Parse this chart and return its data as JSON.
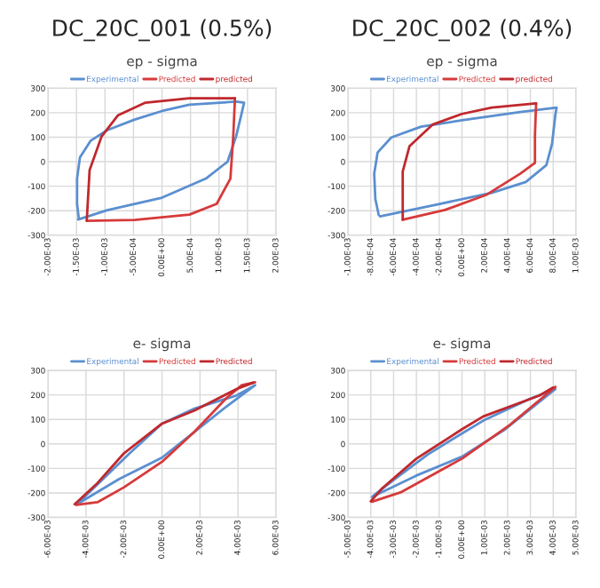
{
  "chart_data": [
    {
      "type": "line",
      "title": "DC_20C_001 (0.5%)",
      "subtitle": "ep - sigma",
      "legend": "top",
      "grid": true,
      "xlim": [
        -0.002,
        0.002
      ],
      "ylim": [
        -300,
        300
      ],
      "xticks": [
        {
          "value": -0.002,
          "label": "-2.00E-03"
        },
        {
          "value": -0.0015,
          "label": "-1.50E-03"
        },
        {
          "value": -0.001,
          "label": "-1.00E-03"
        },
        {
          "value": -0.0005,
          "label": "-5.00E-04"
        },
        {
          "value": 0,
          "label": "0.00E+00"
        },
        {
          "value": 0.0005,
          "label": "5.00E-04"
        },
        {
          "value": 0.001,
          "label": "1.00E-03"
        },
        {
          "value": 0.0015,
          "label": "1.50E-03"
        },
        {
          "value": 0.002,
          "label": "2.00E-03"
        }
      ],
      "yticks": [
        -300,
        -200,
        -100,
        0,
        100,
        200,
        300
      ],
      "series": [
        {
          "name": "Experimental",
          "color": "#5b8fd0",
          "x": [
            -0.00147,
            -0.00096,
            0,
            0.00077,
            0.00115,
            0.0013,
            0.00139,
            0.00144,
            0.0013,
            0.00048,
            0,
            -0.00048,
            -0.00096,
            -0.00125,
            -0.00144,
            -0.00149,
            -0.00149,
            -0.00146
          ],
          "values": [
            -236,
            -198,
            -147,
            -69,
            0,
            103,
            190,
            241,
            245,
            233,
            207,
            172,
            129,
            86,
            17,
            -69,
            -172,
            -232
          ]
        },
        {
          "name": "Predicted",
          "color": "#d63a3a",
          "x": [
            -0.00132,
            -0.00048,
            0.00048,
            0.00096,
            0.0012,
            0.00125,
            0.00128
          ],
          "values": [
            -241,
            -238,
            -216,
            -172,
            -69,
            103,
            259
          ]
        },
        {
          "name": "predicted",
          "color": "#c0282d",
          "x": [
            0.00128,
            0.00048,
            -0.00029,
            -0.00077,
            -0.00106,
            -0.00127,
            -0.00132
          ],
          "values": [
            259,
            259,
            241,
            190,
            103,
            -34,
            -241
          ]
        }
      ]
    },
    {
      "type": "line",
      "title": "DC_20C_002 (0.4%)",
      "subtitle": "ep - sigma",
      "legend": "top",
      "grid": true,
      "xlim": [
        -0.001,
        0.001
      ],
      "ylim": [
        -300,
        300
      ],
      "xticks": [
        {
          "value": -0.001,
          "label": "-1.00E-03"
        },
        {
          "value": -0.0008,
          "label": "-8.00E-04"
        },
        {
          "value": -0.0006,
          "label": "-6.00E-04"
        },
        {
          "value": -0.0004,
          "label": "-4.00E-04"
        },
        {
          "value": -0.0002,
          "label": "-2.00E-04"
        },
        {
          "value": 0,
          "label": "0.00E+00"
        },
        {
          "value": 0.0002,
          "label": "2.00E-04"
        },
        {
          "value": 0.0004,
          "label": "4.00E-04"
        },
        {
          "value": 0.0006,
          "label": "6.00E-04"
        },
        {
          "value": 0.0008,
          "label": "8.00E-04"
        },
        {
          "value": 0.001,
          "label": "1.00E-03"
        }
      ],
      "yticks": [
        -300,
        -200,
        -100,
        0,
        100,
        200,
        300
      ],
      "series": [
        {
          "name": "Experimental",
          "color": "#5b8fd0",
          "x": [
            -0.00072,
            -0.00026,
            0.00026,
            0.00056,
            0.00074,
            0.00079,
            0.00082,
            0.00083,
            0.00051,
            0,
            -0.00036,
            -0.00062,
            -0.00074,
            -0.00077,
            -0.00076,
            -0.00073
          ],
          "values": [
            -223,
            -179,
            -127,
            -83,
            -14,
            73,
            195,
            221,
            203,
            169,
            143,
            99,
            38,
            -49,
            -153,
            -218
          ]
        },
        {
          "name": "Predicted",
          "color": "#d63a3a",
          "x": [
            -0.00052,
            -0.00015,
            0.00021,
            0.00051,
            0.00064,
            0.00064,
            0.00065
          ],
          "values": [
            -237,
            -197,
            -136,
            -49,
            -5,
            108,
            238
          ]
        },
        {
          "name": "predicted",
          "color": "#c0282d",
          "x": [
            0.00065,
            0.00026,
            0,
            -0.00026,
            -0.00046,
            -0.00052,
            -0.00052
          ],
          "values": [
            238,
            221,
            195,
            151,
            64,
            -40,
            -237
          ]
        }
      ]
    },
    {
      "type": "line",
      "title": "e- sigma",
      "legend": "top",
      "grid": true,
      "xlim": [
        -0.006,
        0.006
      ],
      "ylim": [
        -300,
        300
      ],
      "xticks": [
        {
          "value": -0.006,
          "label": "-6.00E-03"
        },
        {
          "value": -0.004,
          "label": "-4.00E-03"
        },
        {
          "value": -0.002,
          "label": "-2.00E-03"
        },
        {
          "value": 0,
          "label": "0.00E+00"
        },
        {
          "value": 0.002,
          "label": "2.00E-03"
        },
        {
          "value": 0.004,
          "label": "4.00E-03"
        },
        {
          "value": 0.006,
          "label": "6.00E-03"
        }
      ],
      "yticks": [
        -300,
        -200,
        -100,
        0,
        100,
        200,
        300
      ],
      "series": [
        {
          "name": "Experimental",
          "color": "#5b8fd0",
          "x": [
            -0.0045,
            -0.00225,
            0,
            0.0017,
            0.0034,
            0.0049,
            0.0039,
            0.0017,
            0,
            -0.0017,
            -0.0031,
            -0.0044
          ],
          "values": [
            -247,
            -143,
            -56,
            49,
            153,
            240,
            197,
            144,
            83,
            -38,
            -143,
            -240
          ]
        },
        {
          "name": "Predicted",
          "color": "#d63a3a",
          "x": [
            -0.0045,
            -0.0034,
            -0.002,
            0,
            0.0017,
            0.0034,
            0.0042,
            0.0049
          ],
          "values": [
            -249,
            -238,
            -177,
            -73,
            49,
            188,
            240,
            252
          ]
        },
        {
          "name": "Predicted",
          "color": "#c0282d",
          "x": [
            0.0048,
            0.0039,
            0.0017,
            0,
            -0.002,
            -0.0034,
            -0.0046
          ],
          "values": [
            250,
            223,
            136,
            83,
            -38,
            -160,
            -246
          ]
        }
      ]
    },
    {
      "type": "line",
      "title": "e- sigma",
      "legend": "top",
      "grid": true,
      "xlim": [
        -0.005,
        0.005
      ],
      "ylim": [
        -300,
        300
      ],
      "xticks": [
        {
          "value": -0.005,
          "label": "-5.00E-03"
        },
        {
          "value": -0.004,
          "label": "-4.00E-03"
        },
        {
          "value": -0.003,
          "label": "-3.00E-03"
        },
        {
          "value": -0.002,
          "label": "-2.00E-03"
        },
        {
          "value": -0.001,
          "label": "-1.00E-03"
        },
        {
          "value": 0,
          "label": "0.00E+00"
        },
        {
          "value": 0.001,
          "label": "1.00E-03"
        },
        {
          "value": 0.002,
          "label": "2.00E-03"
        },
        {
          "value": 0.003,
          "label": "3.00E-03"
        },
        {
          "value": 0.004,
          "label": "4.00E-03"
        },
        {
          "value": 0.005,
          "label": "5.00E-03"
        }
      ],
      "yticks": [
        -300,
        -200,
        -100,
        0,
        100,
        200,
        300
      ],
      "series": [
        {
          "name": "Experimental",
          "color": "#5b8fd0",
          "x": [
            -0.00395,
            -0.002,
            0,
            0.0019,
            0.0041,
            0.0029,
            0.00093,
            0,
            -0.0015,
            -0.003,
            -0.0039
          ],
          "values": [
            -216,
            -129,
            -52,
            60,
            224,
            181,
            95,
            43,
            -43,
            -147,
            -212
          ]
        },
        {
          "name": "Predicted",
          "color": "#d63a3a",
          "x": [
            -0.00395,
            -0.0027,
            0,
            0.0021,
            0.0041
          ],
          "values": [
            -236,
            -198,
            -60,
            78,
            233
          ]
        },
        {
          "name": "Predicted",
          "color": "#c0282d",
          "x": [
            0.004,
            0.0034,
            0.00093,
            0,
            -0.002,
            -0.0035,
            -0.004
          ],
          "values": [
            231,
            198,
            112,
            60,
            -60,
            -181,
            -234
          ]
        }
      ]
    }
  ]
}
